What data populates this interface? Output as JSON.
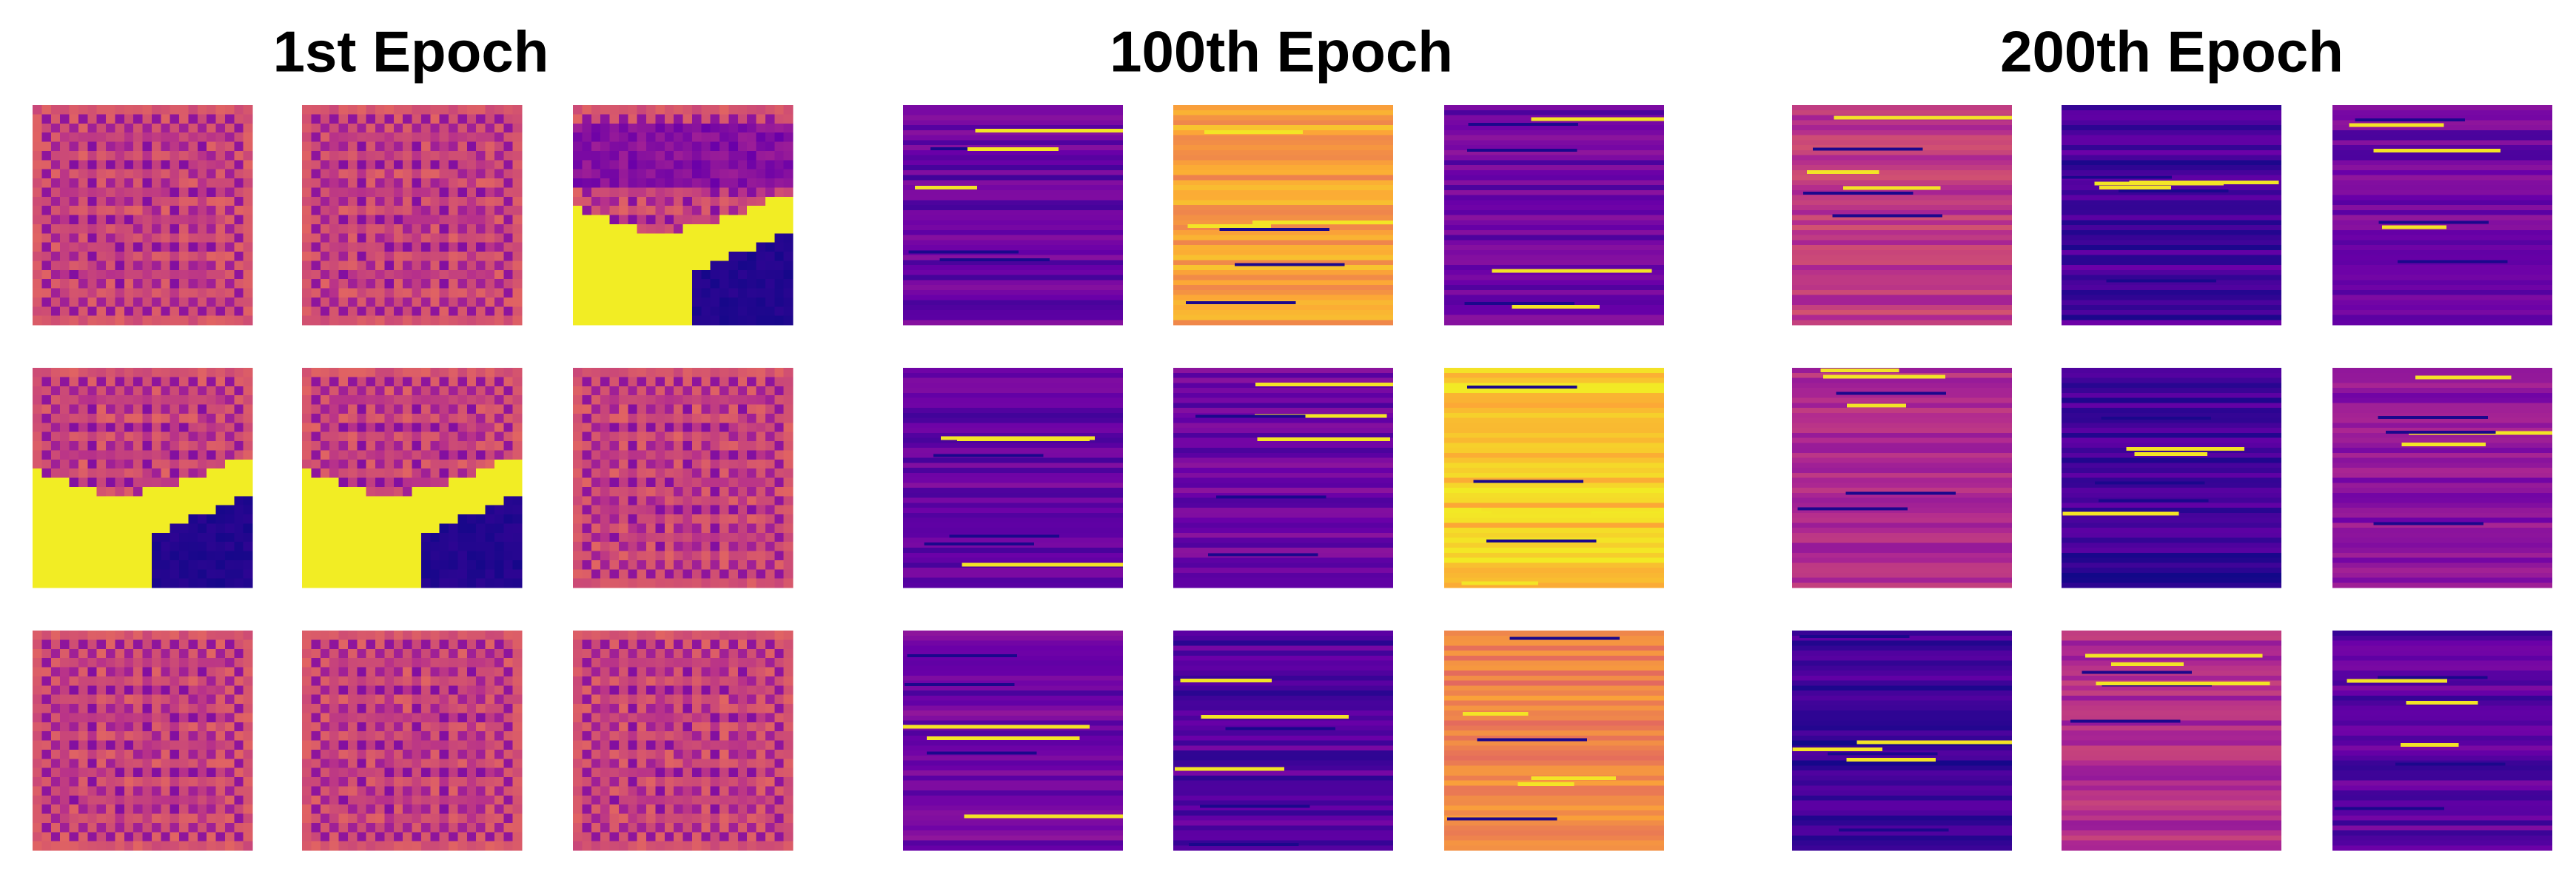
{
  "panels": [
    {
      "title": "1st Epoch"
    },
    {
      "title": "100th Epoch"
    },
    {
      "title": "200th Epoch"
    }
  ]
}
